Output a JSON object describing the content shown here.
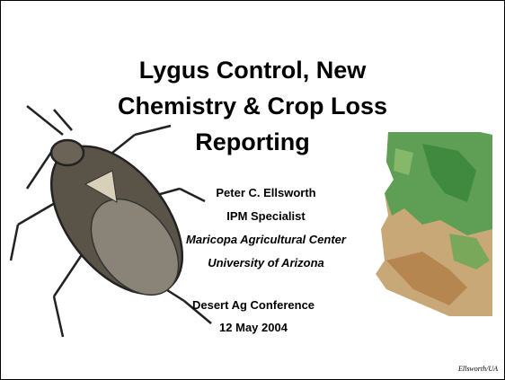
{
  "slide": {
    "title_lines": [
      "Lygus Control, New",
      "Chemistry & Crop Loss",
      "Reporting"
    ],
    "presenter": "Peter C. Ellsworth",
    "role": "IPM Specialist",
    "center": "Maricopa Agricultural Center",
    "university": "University of Arizona",
    "event": "Desert Ag Conference",
    "date": "12 May 2004",
    "footer": "Ellsworth/UA"
  }
}
